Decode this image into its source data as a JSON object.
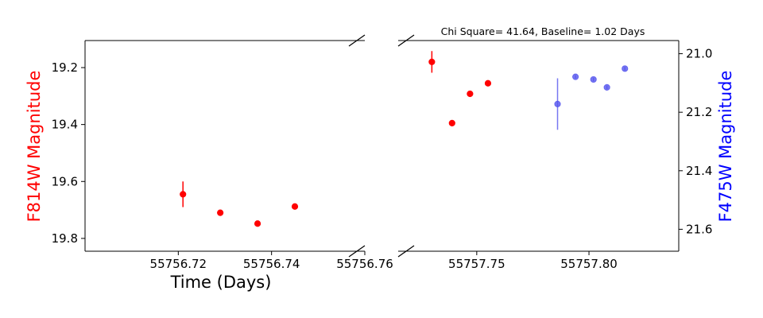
{
  "chart_data": {
    "type": "scatter",
    "title": "Chi Square= 41.64, Baseline= 1.02 Days",
    "xlabel": "Time (Days)",
    "ylabel_left": "F814W Magnitude",
    "ylabel_right": "F475W Magnitude",
    "broken_x_axis": true,
    "left_panel": {
      "xlim": [
        55756.7,
        55756.76
      ],
      "ylim": [
        19.845,
        19.105
      ],
      "y_inverted": true,
      "xticks": [
        55756.72,
        55756.74,
        55756.76
      ],
      "xtick_labels": [
        "55756.72",
        "55756.74",
        "55756.76"
      ],
      "yticks": [
        19.2,
        19.4,
        19.6,
        19.8
      ],
      "ytick_labels": [
        "19.2",
        "19.4",
        "19.6",
        "19.8"
      ]
    },
    "right_panel": {
      "xlim": [
        55757.715,
        55757.84
      ],
      "ylim_left": [
        19.845,
        19.105
      ],
      "ylim_right": [
        21.675,
        20.955
      ],
      "xticks": [
        55757.75,
        55757.8
      ],
      "xtick_labels": [
        "55757.75",
        "55757.80"
      ],
      "yticks_right": [
        21.0,
        21.2,
        21.4,
        21.6
      ],
      "ytick_labels_right": [
        "21.0",
        "21.2",
        "21.4",
        "21.6"
      ]
    },
    "series": [
      {
        "name": "F814W",
        "color": "#ff0000",
        "axis": "left",
        "points": [
          {
            "x": 55756.721,
            "y": 19.645,
            "err": 0.045
          },
          {
            "x": 55756.729,
            "y": 19.71,
            "err": 0.008
          },
          {
            "x": 55756.737,
            "y": 19.748,
            "err": 0.006
          },
          {
            "x": 55756.745,
            "y": 19.688,
            "err": 0.004
          },
          {
            "x": 55757.73,
            "y": 19.18,
            "err": 0.038
          },
          {
            "x": 55757.739,
            "y": 19.395,
            "err": 0.01
          },
          {
            "x": 55757.747,
            "y": 19.292,
            "err": 0.006
          },
          {
            "x": 55757.755,
            "y": 19.255,
            "err": 0.005
          }
        ]
      },
      {
        "name": "F475W",
        "color": "#5555ee",
        "axis": "right",
        "points": [
          {
            "x": 55757.786,
            "y": 21.172,
            "err": 0.088
          },
          {
            "x": 55757.794,
            "y": 21.079,
            "err": 0.006
          },
          {
            "x": 55757.802,
            "y": 21.088,
            "err": 0.006
          },
          {
            "x": 55757.808,
            "y": 21.115,
            "err": 0.006
          },
          {
            "x": 55757.816,
            "y": 21.051,
            "err": 0.006
          }
        ]
      }
    ]
  }
}
